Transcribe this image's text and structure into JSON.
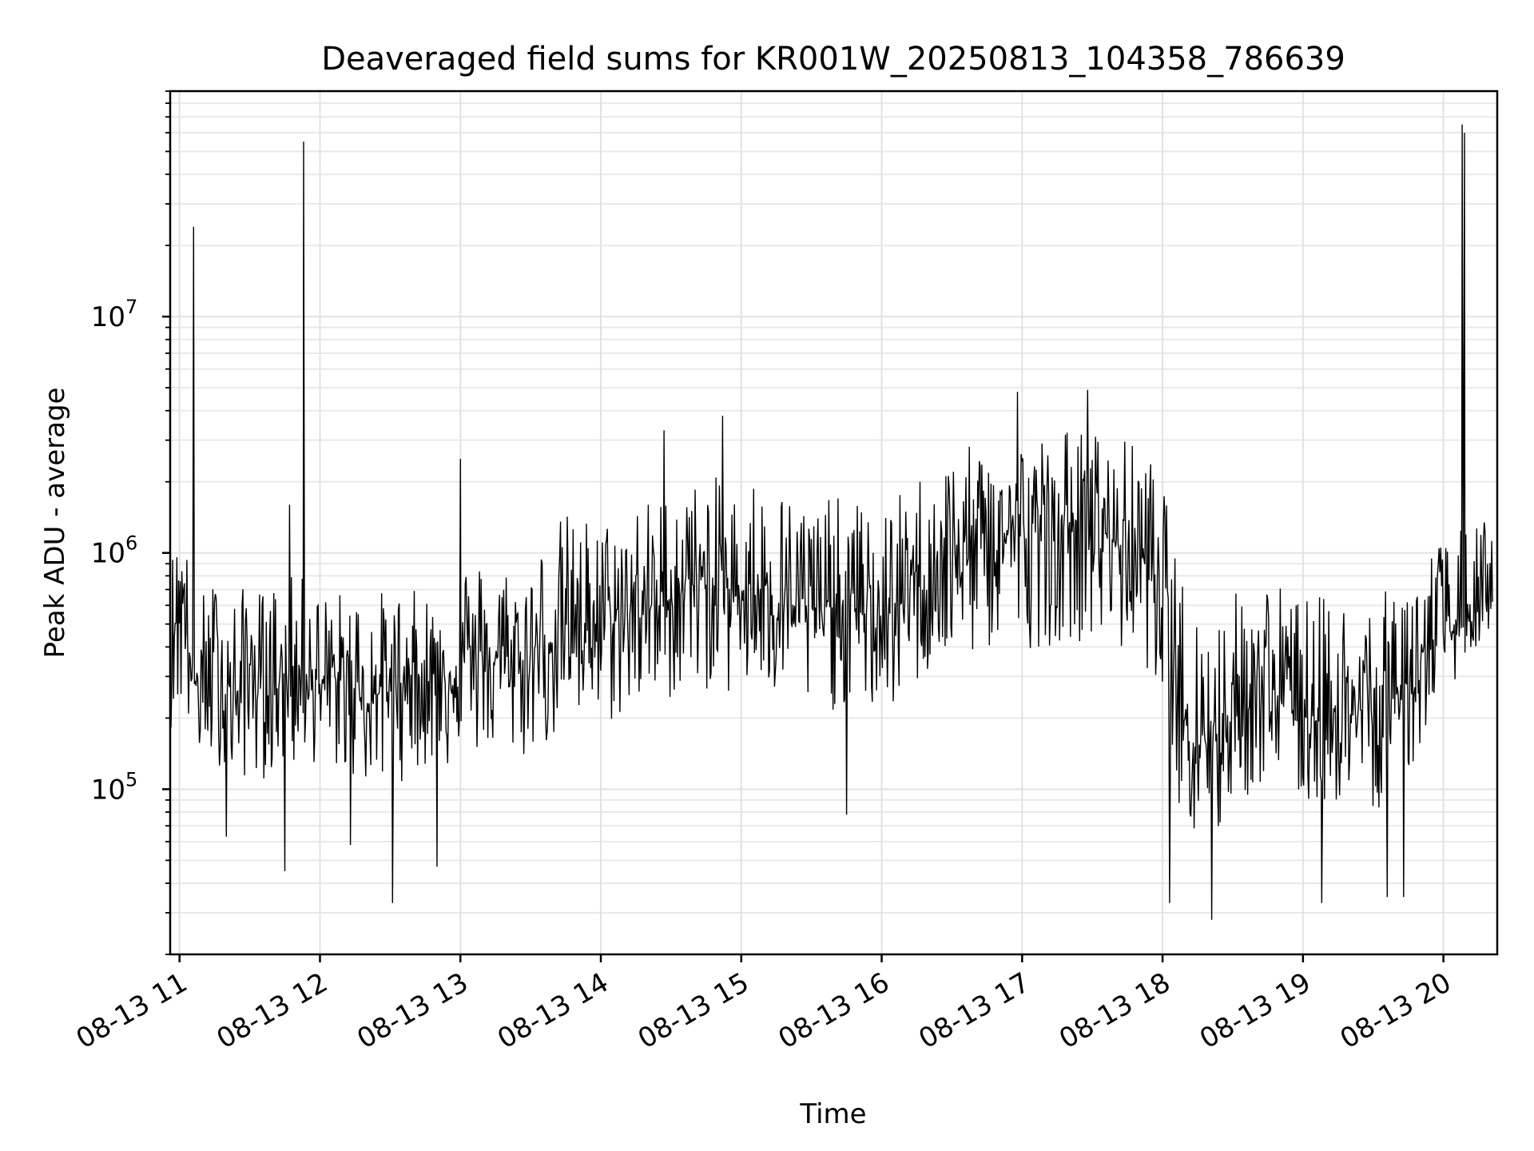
{
  "chart_data": {
    "type": "line",
    "title": "Deaveraged field sums for KR001W_20250813_104358_786639",
    "xlabel": "Time",
    "ylabel": "Peak ADU - average",
    "xscale": "time",
    "yscale": "log",
    "xlim": [
      "2025-08-13T10:56",
      "2025-08-13T20:23"
    ],
    "ylim": [
      20000,
      90000000
    ],
    "grid": true,
    "x_ticks": [
      "08-13 11",
      "08-13 12",
      "08-13 13",
      "08-13 14",
      "08-13 15",
      "08-13 16",
      "08-13 17",
      "08-13 18",
      "08-13 19",
      "08-13 20"
    ],
    "x_tick_times": [
      "2025-08-13T11:00",
      "2025-08-13T12:00",
      "2025-08-13T13:00",
      "2025-08-13T14:00",
      "2025-08-13T15:00",
      "2025-08-13T16:00",
      "2025-08-13T17:00",
      "2025-08-13T18:00",
      "2025-08-13T19:00",
      "2025-08-13T20:00"
    ],
    "y_ticks": [
      {
        "value": 100000,
        "base": "10",
        "exp": "5"
      },
      {
        "value": 1000000,
        "base": "10",
        "exp": "6"
      },
      {
        "value": 10000000,
        "base": "10",
        "exp": "7"
      }
    ],
    "series": [
      {
        "color": "#000000",
        "x": [
          "2025-08-13T10:56",
          "2025-08-13T11:01",
          "2025-08-13T11:06",
          "2025-08-13T11:11",
          "2025-08-13T11:16",
          "2025-08-13T11:21",
          "2025-08-13T11:26",
          "2025-08-13T11:31",
          "2025-08-13T11:36",
          "2025-08-13T11:41",
          "2025-08-13T11:46",
          "2025-08-13T11:51",
          "2025-08-13T11:56",
          "2025-08-13T12:01",
          "2025-08-13T12:06",
          "2025-08-13T12:11",
          "2025-08-13T12:16",
          "2025-08-13T12:21",
          "2025-08-13T12:26",
          "2025-08-13T12:31",
          "2025-08-13T12:36",
          "2025-08-13T12:41",
          "2025-08-13T12:46",
          "2025-08-13T12:51",
          "2025-08-13T12:56",
          "2025-08-13T13:01",
          "2025-08-13T13:06",
          "2025-08-13T13:11",
          "2025-08-13T13:16",
          "2025-08-13T13:21",
          "2025-08-13T13:26",
          "2025-08-13T13:31",
          "2025-08-13T13:36",
          "2025-08-13T13:41",
          "2025-08-13T13:46",
          "2025-08-13T13:51",
          "2025-08-13T13:56",
          "2025-08-13T14:01",
          "2025-08-13T14:06",
          "2025-08-13T14:11",
          "2025-08-13T14:16",
          "2025-08-13T14:21",
          "2025-08-13T14:26",
          "2025-08-13T14:31",
          "2025-08-13T14:36",
          "2025-08-13T14:41",
          "2025-08-13T14:46",
          "2025-08-13T14:51",
          "2025-08-13T14:56",
          "2025-08-13T15:01",
          "2025-08-13T15:06",
          "2025-08-13T15:11",
          "2025-08-13T15:16",
          "2025-08-13T15:21",
          "2025-08-13T15:26",
          "2025-08-13T15:31",
          "2025-08-13T15:36",
          "2025-08-13T15:41",
          "2025-08-13T15:46",
          "2025-08-13T15:51",
          "2025-08-13T15:56",
          "2025-08-13T16:01",
          "2025-08-13T16:06",
          "2025-08-13T16:11",
          "2025-08-13T16:16",
          "2025-08-13T16:21",
          "2025-08-13T16:26",
          "2025-08-13T16:31",
          "2025-08-13T16:36",
          "2025-08-13T16:41",
          "2025-08-13T16:46",
          "2025-08-13T16:51",
          "2025-08-13T16:56",
          "2025-08-13T17:01",
          "2025-08-13T17:06",
          "2025-08-13T17:11",
          "2025-08-13T17:16",
          "2025-08-13T17:21",
          "2025-08-13T17:26",
          "2025-08-13T17:31",
          "2025-08-13T17:36",
          "2025-08-13T17:41",
          "2025-08-13T17:46",
          "2025-08-13T17:51",
          "2025-08-13T17:56",
          "2025-08-13T18:01",
          "2025-08-13T18:06",
          "2025-08-13T18:11",
          "2025-08-13T18:16",
          "2025-08-13T18:21",
          "2025-08-13T18:26",
          "2025-08-13T18:31",
          "2025-08-13T18:36",
          "2025-08-13T18:41",
          "2025-08-13T18:46",
          "2025-08-13T18:51",
          "2025-08-13T18:56",
          "2025-08-13T19:01",
          "2025-08-13T19:06",
          "2025-08-13T19:11",
          "2025-08-13T19:16",
          "2025-08-13T19:21",
          "2025-08-13T19:26",
          "2025-08-13T19:31",
          "2025-08-13T19:36",
          "2025-08-13T19:41",
          "2025-08-13T19:46",
          "2025-08-13T19:51",
          "2025-08-13T19:56",
          "2025-08-13T20:01",
          "2025-08-13T20:06",
          "2025-08-13T20:11",
          "2025-08-13T20:16",
          "2025-08-13T20:21"
        ],
        "y": [
          450000,
          700000,
          280000,
          250000,
          400000,
          220000,
          260000,
          350000,
          240000,
          280000,
          320000,
          300000,
          330000,
          260000,
          300000,
          270000,
          280000,
          230000,
          260000,
          290000,
          280000,
          310000,
          300000,
          320000,
          300000,
          380000,
          350000,
          320000,
          360000,
          330000,
          330000,
          380000,
          400000,
          460000,
          500000,
          480000,
          520000,
          470000,
          520000,
          540000,
          620000,
          580000,
          600000,
          660000,
          800000,
          700000,
          750000,
          740000,
          650000,
          700000,
          780000,
          620000,
          700000,
          600000,
          620000,
          560000,
          600000,
          580000,
          640000,
          540000,
          580000,
          500000,
          620000,
          600000,
          780000,
          800000,
          900000,
          980000,
          1000000,
          1050000,
          1100000,
          1150000,
          1300000,
          1150000,
          1200000,
          1200000,
          1250000,
          1350000,
          1300000,
          1250000,
          1200000,
          1100000,
          1150000,
          950000,
          900000,
          650000,
          300000,
          200000,
          180000,
          160000,
          200000,
          230000,
          220000,
          260000,
          280000,
          240000,
          220000,
          210000,
          200000,
          230000,
          210000,
          200000,
          220000,
          200000,
          230000,
          260000,
          300000,
          350000,
          420000,
          450000,
          480000,
          520000,
          580000,
          620000
        ],
        "low": [
          180000,
          200000,
          150000,
          120000,
          130000,
          110000,
          110000,
          110000,
          110000,
          120000,
          120000,
          120000,
          130000,
          120000,
          120000,
          110000,
          110000,
          100000,
          100000,
          100000,
          110000,
          120000,
          120000,
          130000,
          120000,
          140000,
          140000,
          130000,
          150000,
          140000,
          130000,
          140000,
          150000,
          160000,
          180000,
          180000,
          190000,
          180000,
          190000,
          200000,
          220000,
          210000,
          220000,
          240000,
          260000,
          250000,
          260000,
          260000,
          240000,
          250000,
          260000,
          220000,
          240000,
          220000,
          220000,
          200000,
          220000,
          210000,
          230000,
          200000,
          210000,
          190000,
          220000,
          220000,
          280000,
          300000,
          320000,
          330000,
          350000,
          360000,
          380000,
          380000,
          420000,
          380000,
          400000,
          400000,
          410000,
          430000,
          420000,
          410000,
          400000,
          370000,
          380000,
          330000,
          310000,
          230000,
          90000,
          60000,
          50000,
          45000,
          70000,
          90000,
          90000,
          100000,
          110000,
          95000,
          90000,
          85000,
          80000,
          90000,
          85000,
          80000,
          90000,
          80000,
          90000,
          100000,
          120000,
          150000,
          220000,
          260000,
          300000,
          350000,
          400000,
          450000
        ],
        "high": [
          1000000,
          1400000,
          800000,
          700000,
          800000,
          700000,
          700000,
          800000,
          700000,
          800000,
          800000,
          800000,
          800000,
          700000,
          700000,
          700000,
          700000,
          700000,
          700000,
          700000,
          700000,
          700000,
          700000,
          700000,
          800000,
          1000000,
          1000000,
          900000,
          1000000,
          900000,
          900000,
          1000000,
          1200000,
          1400000,
          1500000,
          1400000,
          1500000,
          1400000,
          1500000,
          1600000,
          1800000,
          1700000,
          1800000,
          1900000,
          2200000,
          2000000,
          2100000,
          2100000,
          1900000,
          2000000,
          2200000,
          1800000,
          2000000,
          1800000,
          1800000,
          1700000,
          1800000,
          1700000,
          1900000,
          1600000,
          1700000,
          1500000,
          1800000,
          1800000,
          2200000,
          2300000,
          2500000,
          2700000,
          2800000,
          2900000,
          3000000,
          3100000,
          3400000,
          3100000,
          3200000,
          3200000,
          3300000,
          3500000,
          3400000,
          3300000,
          3200000,
          3000000,
          3100000,
          2600000,
          2500000,
          1800000,
          900000,
          700000,
          600000,
          550000,
          650000,
          700000,
          700000,
          800000,
          850000,
          750000,
          700000,
          680000,
          650000,
          700000,
          680000,
          650000,
          700000,
          650000,
          700000,
          800000,
          900000,
          1000000,
          1100000,
          1200000,
          1250000,
          1300000,
          1400000,
          1500000
        ]
      }
    ],
    "spikes": [
      {
        "x": "2025-08-13T11:06",
        "y": 24000000
      },
      {
        "x": "2025-08-13T11:47",
        "y": 1600000
      },
      {
        "x": "2025-08-13T11:53",
        "y": 55000000
      },
      {
        "x": "2025-08-13T13:00",
        "y": 2500000
      },
      {
        "x": "2025-08-13T14:27",
        "y": 3300000
      },
      {
        "x": "2025-08-13T14:52",
        "y": 3800000
      },
      {
        "x": "2025-08-13T16:58",
        "y": 4800000
      },
      {
        "x": "2025-08-13T17:28",
        "y": 4900000
      },
      {
        "x": "2025-08-13T20:08",
        "y": 65000000
      },
      {
        "x": "2025-08-13T20:09",
        "y": 60000000
      }
    ],
    "dips": [
      {
        "x": "2025-08-13T11:20",
        "y": 63000
      },
      {
        "x": "2025-08-13T11:45",
        "y": 45000
      },
      {
        "x": "2025-08-13T12:13",
        "y": 58000
      },
      {
        "x": "2025-08-13T12:31",
        "y": 33000
      },
      {
        "x": "2025-08-13T12:50",
        "y": 47000
      },
      {
        "x": "2025-08-13T15:45",
        "y": 78000
      },
      {
        "x": "2025-08-13T18:03",
        "y": 33000
      },
      {
        "x": "2025-08-13T18:21",
        "y": 28000
      },
      {
        "x": "2025-08-13T19:08",
        "y": 33000
      },
      {
        "x": "2025-08-13T19:36",
        "y": 35000
      },
      {
        "x": "2025-08-13T19:43",
        "y": 35000
      }
    ]
  }
}
